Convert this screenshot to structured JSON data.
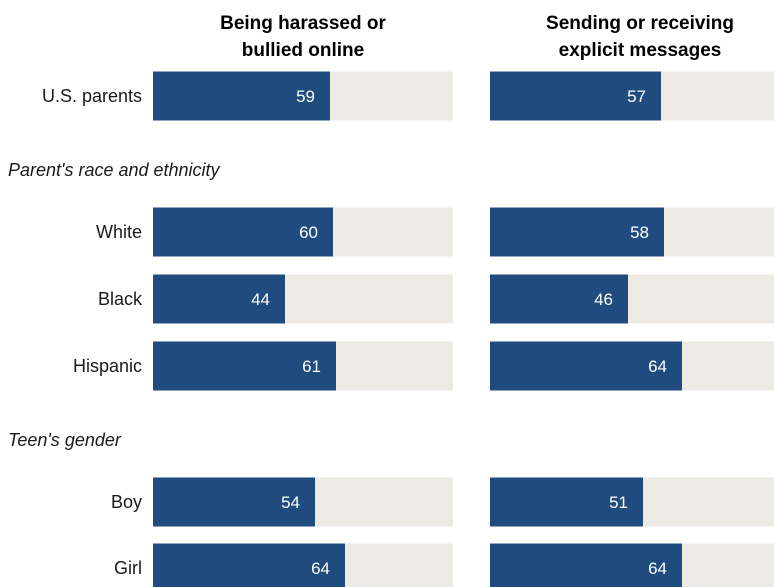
{
  "colors": {
    "bar": "#1f4b7e",
    "track": "#ede9e3",
    "value_text": "#ffffff"
  },
  "chart_data": {
    "type": "bar",
    "orientation": "horizontal",
    "xlim": [
      0,
      100
    ],
    "columns": [
      {
        "title_lines": [
          "Being harassed or",
          "bullied online"
        ]
      },
      {
        "title_lines": [
          "Sending or receiving",
          "explicit messages"
        ]
      }
    ],
    "groups": [
      {
        "label": "",
        "rows": [
          {
            "label": "U.S. parents",
            "values": [
              59,
              57
            ]
          }
        ]
      },
      {
        "label": "Parent's race and ethnicity",
        "rows": [
          {
            "label": "White",
            "values": [
              60,
              58
            ]
          },
          {
            "label": "Black",
            "values": [
              44,
              46
            ]
          },
          {
            "label": "Hispanic",
            "values": [
              61,
              64
            ]
          }
        ]
      },
      {
        "label": "Teen's gender",
        "rows": [
          {
            "label": "Boy",
            "values": [
              54,
              51
            ]
          },
          {
            "label": "Girl",
            "values": [
              64,
              64
            ]
          }
        ]
      }
    ]
  }
}
